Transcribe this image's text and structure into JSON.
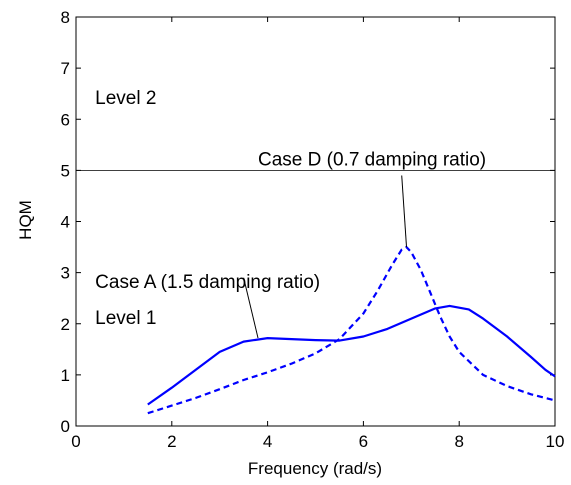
{
  "chart_data": {
    "type": "line",
    "xlabel": "Frequency (rad/s)",
    "ylabel": "HQM",
    "xlim": [
      0,
      10
    ],
    "ylim": [
      0,
      8
    ],
    "xticks": [
      0,
      2,
      4,
      6,
      8,
      10
    ],
    "yticks": [
      0,
      1,
      2,
      3,
      4,
      5,
      6,
      7,
      8
    ],
    "grid": false,
    "series": [
      {
        "style": "solid",
        "color": "#0000ff",
        "x": [
          1.5,
          2.0,
          2.5,
          3.0,
          3.5,
          4.0,
          4.5,
          5.0,
          5.5,
          6.0,
          6.5,
          7.0,
          7.5,
          7.8,
          8.2,
          8.5,
          9.0,
          9.5,
          9.8,
          10.0
        ],
        "y": [
          0.42,
          0.75,
          1.1,
          1.45,
          1.65,
          1.72,
          1.7,
          1.68,
          1.67,
          1.75,
          1.9,
          2.1,
          2.3,
          2.35,
          2.28,
          2.1,
          1.75,
          1.35,
          1.1,
          0.97
        ]
      },
      {
        "style": "dashed",
        "color": "#0000ff",
        "x": [
          1.5,
          2.0,
          2.5,
          3.0,
          3.5,
          4.0,
          4.5,
          5.0,
          5.5,
          6.0,
          6.3,
          6.6,
          6.8,
          6.9,
          7.0,
          7.2,
          7.4,
          7.6,
          7.8,
          8.0,
          8.5,
          9.0,
          9.5,
          10.0
        ],
        "y": [
          0.25,
          0.4,
          0.55,
          0.72,
          0.9,
          1.05,
          1.22,
          1.42,
          1.7,
          2.2,
          2.65,
          3.15,
          3.45,
          3.5,
          3.4,
          3.05,
          2.6,
          2.15,
          1.75,
          1.45,
          1.0,
          0.78,
          0.62,
          0.5
        ]
      }
    ],
    "reference_line": {
      "y": 5
    },
    "annotations": [
      {
        "text": "Level 2",
        "x": 0.4,
        "y": 6.3
      },
      {
        "text": "Level 1",
        "x": 0.4,
        "y": 2.0
      },
      {
        "text": "Case D (0.7 damping ratio)",
        "x": 3.8,
        "y": 5.1,
        "arrow_from": [
          6.8,
          4.9
        ],
        "arrow_to": [
          6.9,
          3.5
        ]
      },
      {
        "text": "Case A (1.5 damping ratio)",
        "x": 0.4,
        "y": 2.7,
        "arrow_from": [
          3.5,
          2.9
        ],
        "arrow_to": [
          3.8,
          1.72
        ]
      }
    ]
  }
}
